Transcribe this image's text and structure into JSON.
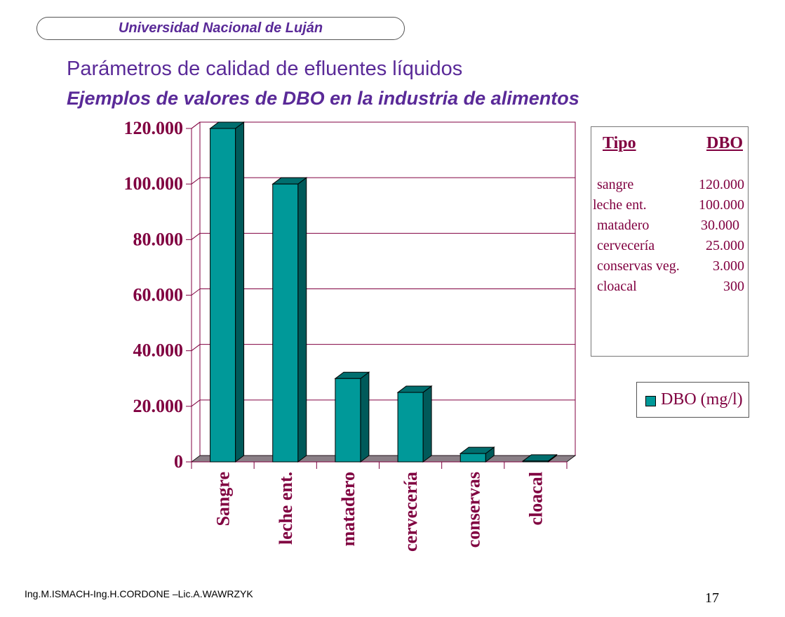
{
  "header": {
    "institution": "Universidad Nacional de Luján"
  },
  "slide": {
    "title": "Parámetros de calidad de efluentes líquidos",
    "subtitle": "Ejemplos de valores de DBO en la industria de alimentos",
    "footer": "Ing.M.ISMACH-Ing.H.CORDONE –Lic.A.WAWRZYK",
    "page_number": "17"
  },
  "table": {
    "col_type": "Tipo",
    "col_dbo": "DBO",
    "rows": [
      {
        "name": "sangre",
        "value": "120.000"
      },
      {
        "name": "leche ent.",
        "value": "100.000"
      },
      {
        "name": "matadero",
        "value": "30.000"
      },
      {
        "name": "cervecería",
        "value": "25.000"
      },
      {
        "name": "conservas veg.",
        "value": "3.000"
      },
      {
        "name": "cloacal",
        "value": "300"
      }
    ]
  },
  "chart_data": {
    "type": "bar",
    "categories": [
      "Sangre",
      "leche ent.",
      "matadero",
      "cervecería",
      "conservas",
      "cloacal"
    ],
    "series": [
      {
        "name": "DBO (mg/l)",
        "values": [
          120000,
          100000,
          30000,
          25000,
          3000,
          300
        ]
      }
    ],
    "yticks": [
      "0",
      "20.000",
      "40.000",
      "60.000",
      "80.000",
      "100.000",
      "120.000"
    ],
    "ylim": [
      0,
      120000
    ],
    "grid": true,
    "legend": "right",
    "colors": {
      "bar_front": "#009999",
      "bar_side": "#005a5a",
      "bar_top": "#006e6e",
      "floor": "#8a7f86",
      "axis_text": "#800040"
    }
  }
}
